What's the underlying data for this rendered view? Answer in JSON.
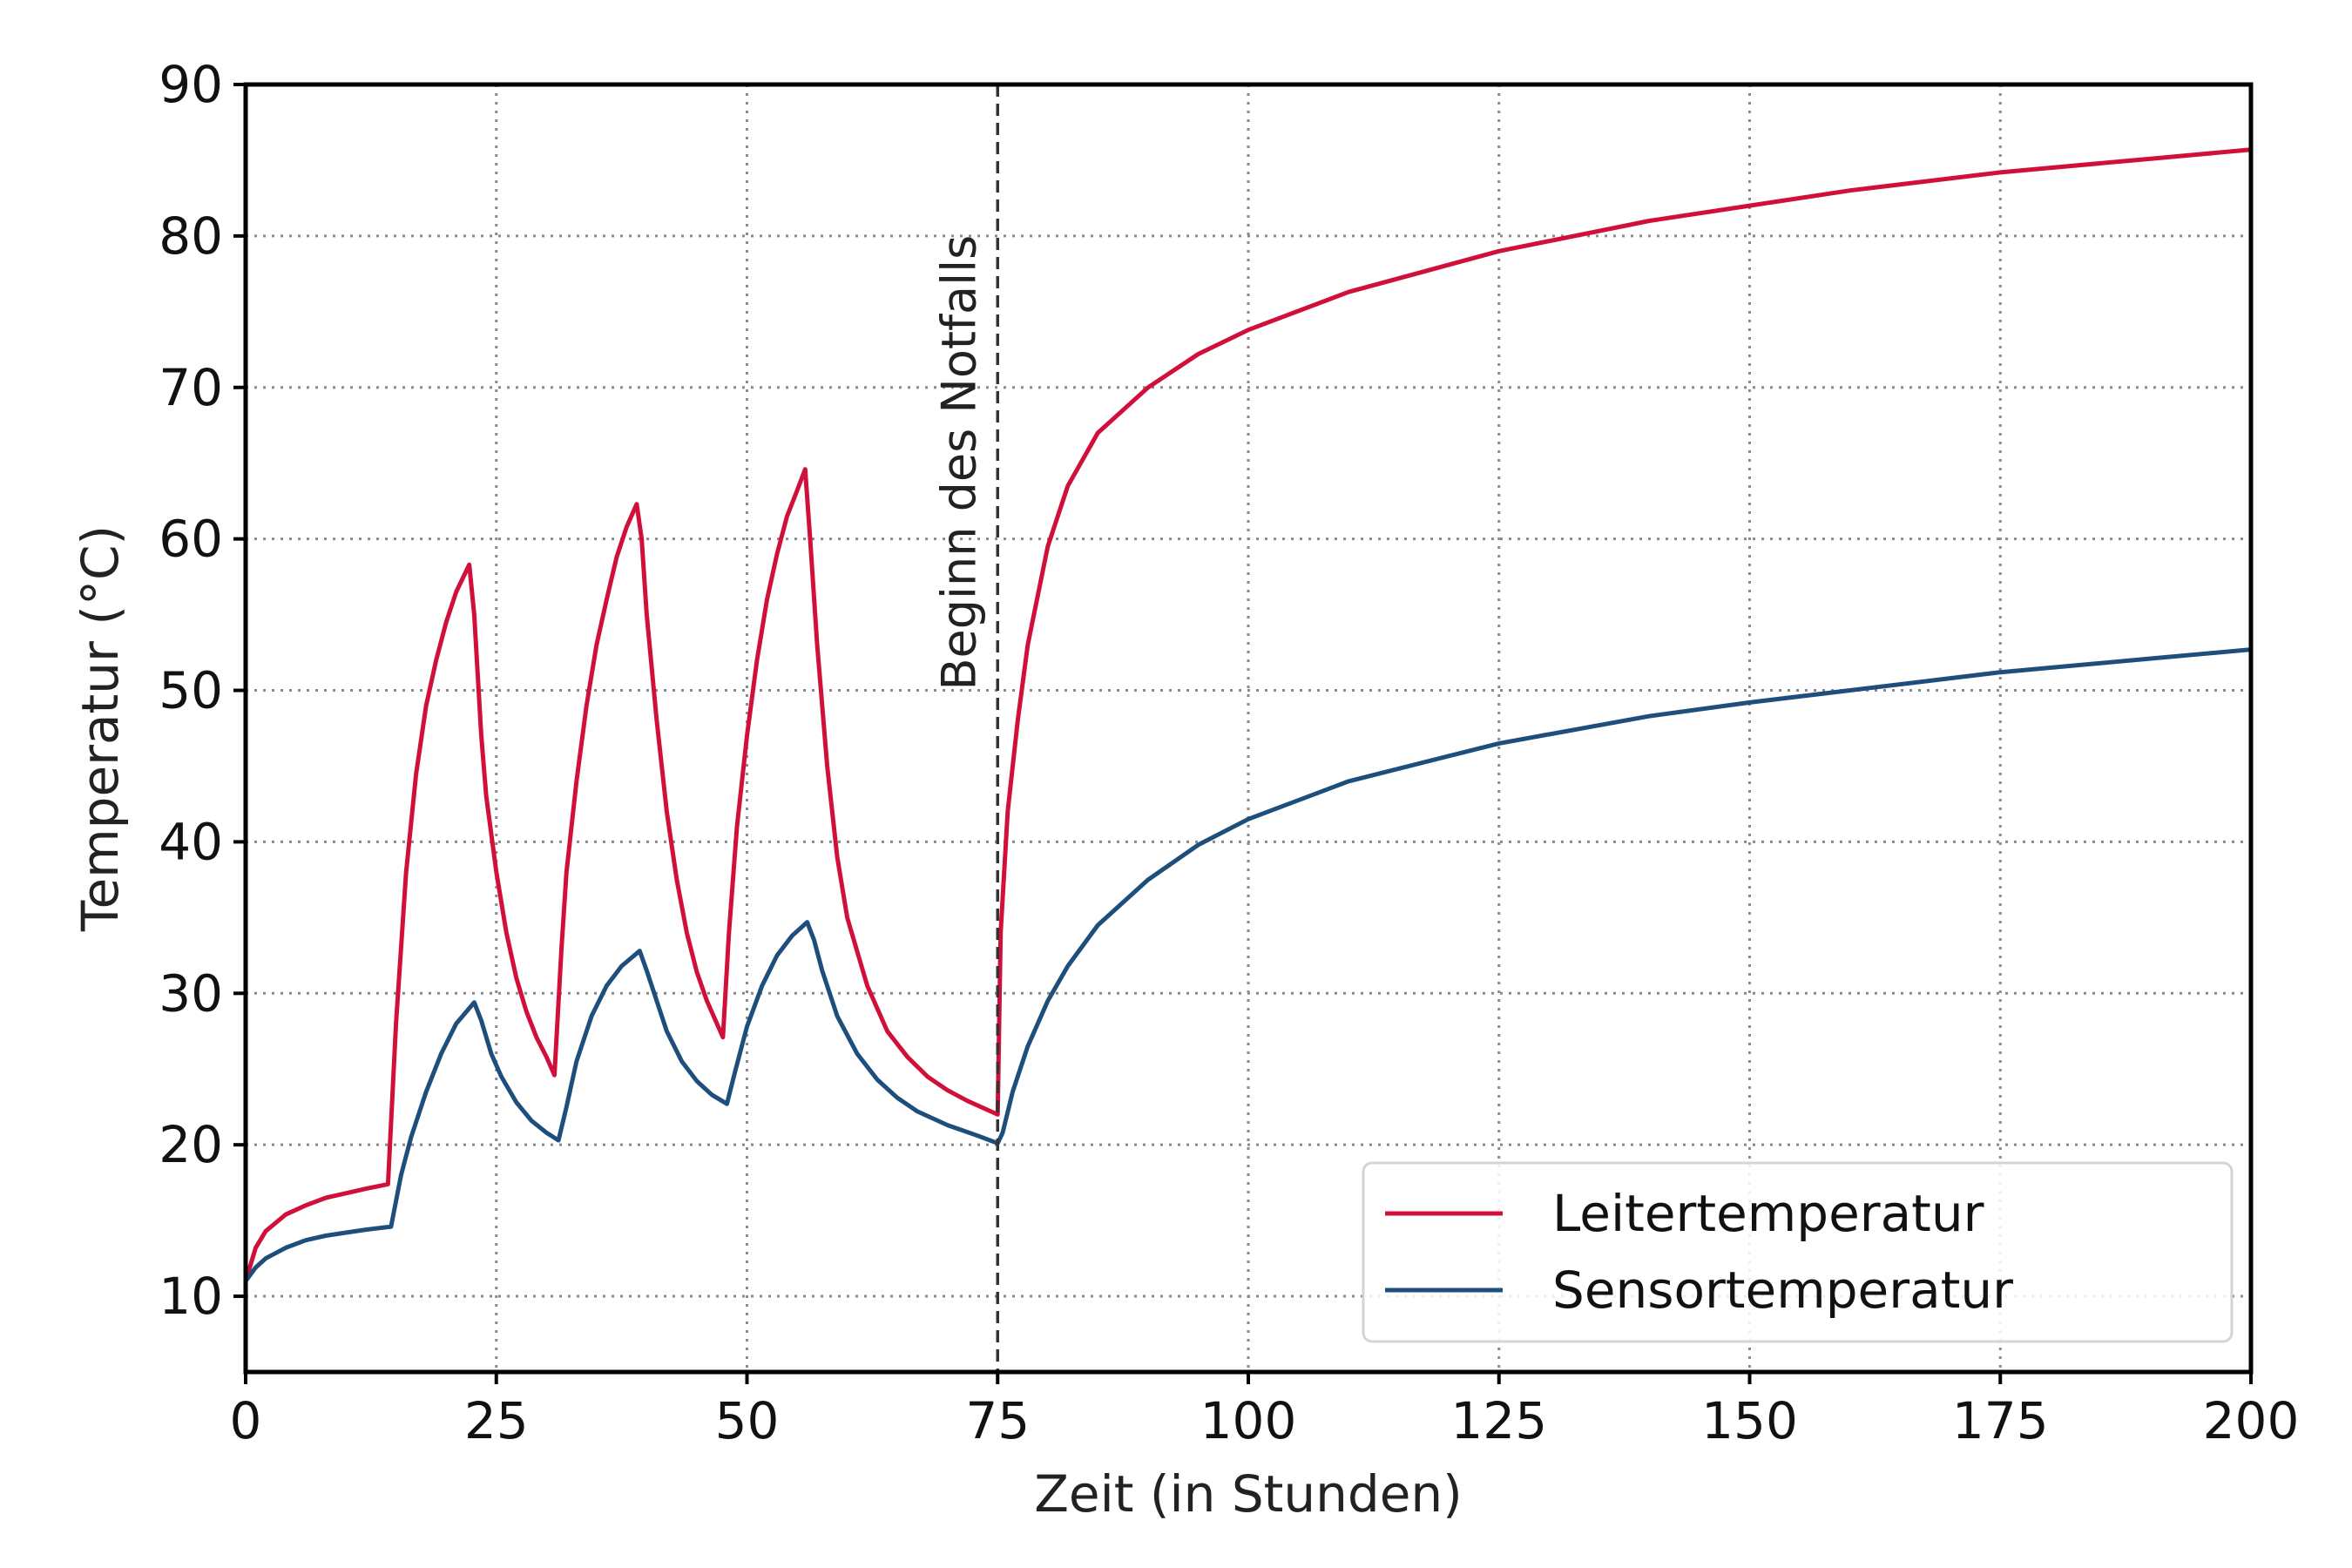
{
  "chart_data": {
    "type": "line",
    "title": "",
    "xlabel": "Zeit (in Stunden)",
    "ylabel": "Temperatur   (°C)",
    "xlim": [
      0,
      200
    ],
    "ylim": [
      5,
      90
    ],
    "xticks": [
      0,
      25,
      50,
      75,
      100,
      125,
      150,
      175,
      200
    ],
    "yticks": [
      10,
      20,
      30,
      40,
      50,
      60,
      70,
      80,
      90
    ],
    "grid": true,
    "legend_position": "lower-right",
    "vline": {
      "x": 75,
      "label": "Beginn des Notfalls",
      "color": "#333333"
    },
    "series": [
      {
        "name": "Leitertemperatur",
        "color": "#d0103a",
        "points": [
          [
            0,
            11
          ],
          [
            1,
            13.2
          ],
          [
            2,
            14.3
          ],
          [
            4,
            15.4
          ],
          [
            6,
            16.0
          ],
          [
            8,
            16.5
          ],
          [
            10,
            16.8
          ],
          [
            12,
            17.1
          ],
          [
            14.2,
            17.4
          ],
          [
            15,
            28
          ],
          [
            16,
            38
          ],
          [
            17,
            44.5
          ],
          [
            18,
            49
          ],
          [
            19,
            52
          ],
          [
            20,
            54.5
          ],
          [
            21,
            56.5
          ],
          [
            22.3,
            58.3
          ],
          [
            22.8,
            55
          ],
          [
            23.5,
            47
          ],
          [
            24,
            43
          ],
          [
            25,
            38
          ],
          [
            26,
            34
          ],
          [
            27,
            31
          ],
          [
            28,
            28.8
          ],
          [
            29,
            27.1
          ],
          [
            30,
            25.8
          ],
          [
            30.8,
            24.6
          ],
          [
            31.5,
            33
          ],
          [
            32,
            38
          ],
          [
            33,
            44
          ],
          [
            34,
            49
          ],
          [
            35,
            53
          ],
          [
            36,
            56
          ],
          [
            37,
            58.8
          ],
          [
            38,
            60.8
          ],
          [
            39,
            62.3
          ],
          [
            39.5,
            60
          ],
          [
            40,
            55
          ],
          [
            41,
            48
          ],
          [
            42,
            42
          ],
          [
            43,
            37.5
          ],
          [
            44,
            34
          ],
          [
            45,
            31.4
          ],
          [
            46,
            29.5
          ],
          [
            47,
            28
          ],
          [
            47.6,
            27.1
          ],
          [
            48.2,
            34
          ],
          [
            49,
            41
          ],
          [
            50,
            47
          ],
          [
            51,
            52
          ],
          [
            52,
            56
          ],
          [
            53,
            59
          ],
          [
            54,
            61.5
          ],
          [
            55,
            63.2
          ],
          [
            55.8,
            64.6
          ],
          [
            56.3,
            60
          ],
          [
            57,
            53
          ],
          [
            58,
            45
          ],
          [
            59,
            39
          ],
          [
            60,
            35
          ],
          [
            62,
            30.5
          ],
          [
            64,
            27.5
          ],
          [
            66,
            25.8
          ],
          [
            68,
            24.5
          ],
          [
            70,
            23.6
          ],
          [
            72,
            22.9
          ],
          [
            75,
            22
          ],
          [
            75.3,
            34
          ],
          [
            76,
            42
          ],
          [
            77,
            48
          ],
          [
            78,
            53
          ],
          [
            80,
            59.5
          ],
          [
            82,
            63.5
          ],
          [
            85,
            67
          ],
          [
            90,
            70
          ],
          [
            95,
            72.2
          ],
          [
            100,
            73.8
          ],
          [
            110,
            76.3
          ],
          [
            125,
            79
          ],
          [
            140,
            81
          ],
          [
            150,
            82
          ],
          [
            160,
            83
          ],
          [
            175,
            84.2
          ],
          [
            190,
            85.1
          ],
          [
            200,
            85.7
          ]
        ]
      },
      {
        "name": "Sensortemperatur",
        "color": "#1e4f7c",
        "points": [
          [
            0,
            11
          ],
          [
            1,
            11.9
          ],
          [
            2,
            12.5
          ],
          [
            4,
            13.2
          ],
          [
            6,
            13.7
          ],
          [
            8,
            14.0
          ],
          [
            10,
            14.2
          ],
          [
            12,
            14.4
          ],
          [
            14.5,
            14.6
          ],
          [
            15.5,
            18
          ],
          [
            16.5,
            20.5
          ],
          [
            18,
            23.5
          ],
          [
            19.5,
            26
          ],
          [
            21,
            28
          ],
          [
            22.8,
            29.4
          ],
          [
            23.5,
            28.2
          ],
          [
            24.5,
            26
          ],
          [
            25.5,
            24.5
          ],
          [
            27,
            22.8
          ],
          [
            28.5,
            21.6
          ],
          [
            30,
            20.8
          ],
          [
            31.2,
            20.3
          ],
          [
            32,
            22.5
          ],
          [
            33,
            25.5
          ],
          [
            34.5,
            28.5
          ],
          [
            36,
            30.5
          ],
          [
            37.5,
            31.8
          ],
          [
            39.3,
            32.8
          ],
          [
            40,
            31.5
          ],
          [
            41,
            29.5
          ],
          [
            42,
            27.5
          ],
          [
            43.5,
            25.5
          ],
          [
            45,
            24.2
          ],
          [
            46.5,
            23.3
          ],
          [
            48,
            22.7
          ],
          [
            48.8,
            24.8
          ],
          [
            50,
            27.8
          ],
          [
            51.5,
            30.5
          ],
          [
            53,
            32.5
          ],
          [
            54.5,
            33.8
          ],
          [
            56,
            34.7
          ],
          [
            56.7,
            33.5
          ],
          [
            57.5,
            31.5
          ],
          [
            59,
            28.5
          ],
          [
            61,
            26
          ],
          [
            63,
            24.3
          ],
          [
            65,
            23.1
          ],
          [
            67,
            22.2
          ],
          [
            70,
            21.3
          ],
          [
            73,
            20.6
          ],
          [
            75,
            20.1
          ],
          [
            75.5,
            20.8
          ],
          [
            76.5,
            23.5
          ],
          [
            78,
            26.5
          ],
          [
            80,
            29.5
          ],
          [
            82,
            31.8
          ],
          [
            85,
            34.5
          ],
          [
            90,
            37.5
          ],
          [
            95,
            39.8
          ],
          [
            100,
            41.5
          ],
          [
            110,
            44
          ],
          [
            125,
            46.5
          ],
          [
            140,
            48.3
          ],
          [
            150,
            49.2
          ],
          [
            160,
            50
          ],
          [
            175,
            51.2
          ],
          [
            190,
            52.1
          ],
          [
            200,
            52.7
          ]
        ]
      }
    ]
  }
}
